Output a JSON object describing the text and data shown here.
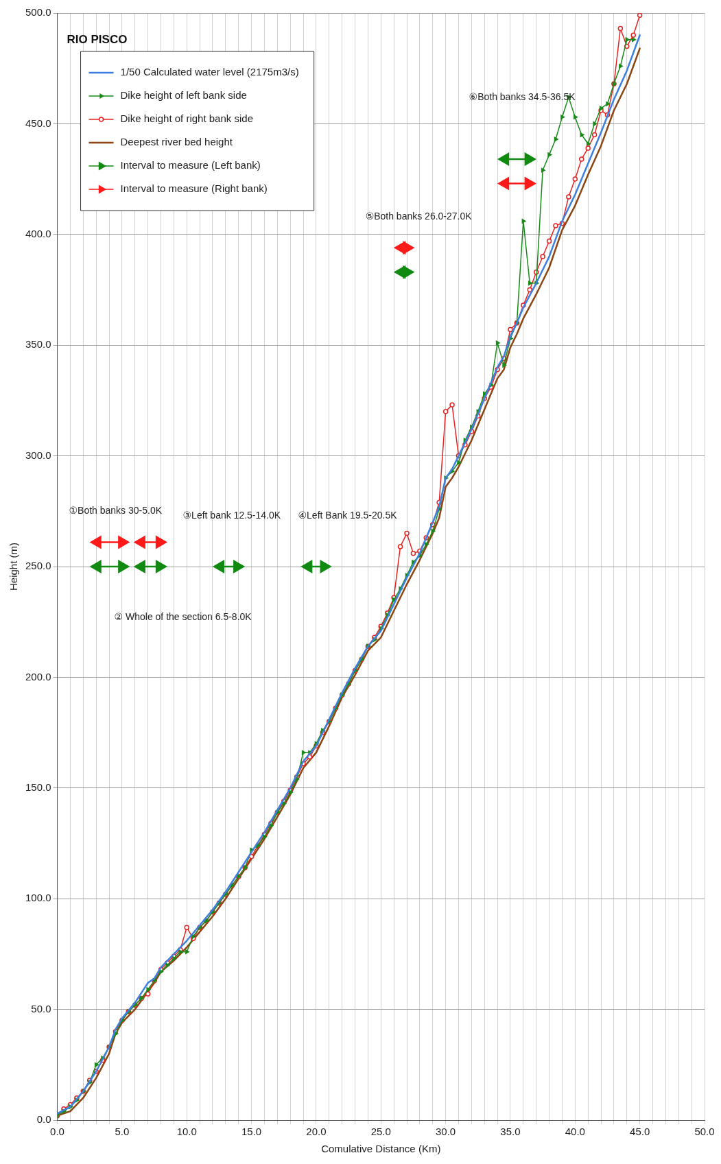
{
  "chart_data": {
    "type": "line",
    "xlabel": "Comulative Distance (Km)",
    "ylabel": "Height (m)",
    "legend_title": "RIO PISCO",
    "xlim": [
      0,
      50
    ],
    "ylim": [
      0,
      500
    ],
    "xticks": [
      {
        "value": 0,
        "label": "0.0"
      },
      {
        "value": 1,
        "label": null
      },
      {
        "value": 2,
        "label": null
      },
      {
        "value": 3,
        "label": null
      },
      {
        "value": 4,
        "label": null
      },
      {
        "value": 5,
        "label": "5.0"
      },
      {
        "value": 6,
        "label": null
      },
      {
        "value": 7,
        "label": null
      },
      {
        "value": 8,
        "label": null
      },
      {
        "value": 9,
        "label": null
      },
      {
        "value": 10,
        "label": "10.0"
      },
      {
        "value": 11,
        "label": null
      },
      {
        "value": 12,
        "label": null
      },
      {
        "value": 13,
        "label": null
      },
      {
        "value": 14,
        "label": null
      },
      {
        "value": 15,
        "label": "15.0"
      },
      {
        "value": 16,
        "label": null
      },
      {
        "value": 17,
        "label": null
      },
      {
        "value": 18,
        "label": null
      },
      {
        "value": 19,
        "label": null
      },
      {
        "value": 20,
        "label": "20.0"
      },
      {
        "value": 21,
        "label": null
      },
      {
        "value": 22,
        "label": null
      },
      {
        "value": 23,
        "label": null
      },
      {
        "value": 24,
        "label": null
      },
      {
        "value": 25,
        "label": "25.0"
      },
      {
        "value": 26,
        "label": null
      },
      {
        "value": 27,
        "label": null
      },
      {
        "value": 28,
        "label": null
      },
      {
        "value": 29,
        "label": null
      },
      {
        "value": 30,
        "label": "30.0"
      },
      {
        "value": 31,
        "label": null
      },
      {
        "value": 32,
        "label": null
      },
      {
        "value": 33,
        "label": null
      },
      {
        "value": 34,
        "label": null
      },
      {
        "value": 35,
        "label": "35.0"
      },
      {
        "value": 36,
        "label": null
      },
      {
        "value": 37,
        "label": null
      },
      {
        "value": 38,
        "label": null
      },
      {
        "value": 39,
        "label": null
      },
      {
        "value": 40,
        "label": "40.0"
      },
      {
        "value": 41,
        "label": null
      },
      {
        "value": 42,
        "label": null
      },
      {
        "value": 43,
        "label": null
      },
      {
        "value": 44,
        "label": null
      },
      {
        "value": 45,
        "label": "45.0"
      },
      {
        "value": 46,
        "label": null
      },
      {
        "value": 47,
        "label": null
      },
      {
        "value": 48,
        "label": null
      },
      {
        "value": 49,
        "label": null
      },
      {
        "value": 50,
        "label": "50.0"
      }
    ],
    "yticks": [
      {
        "value": 0,
        "label": "0.0"
      },
      {
        "value": 50,
        "label": "50.0"
      },
      {
        "value": 100,
        "label": "100.0"
      },
      {
        "value": 150,
        "label": "150.0"
      },
      {
        "value": 200,
        "label": "200.0"
      },
      {
        "value": 250,
        "label": "250.0"
      },
      {
        "value": 300,
        "label": "300.0"
      },
      {
        "value": 350,
        "label": "350.0"
      },
      {
        "value": 400,
        "label": "400.0"
      },
      {
        "value": 450,
        "label": "450.0"
      },
      {
        "value": 500,
        "label": "500.0"
      }
    ],
    "grid": true,
    "legend": "top left",
    "series": [
      {
        "name": "1/50 Calculated water level (2175m3/s)",
        "color": "#3d7fe0",
        "x": [
          0,
          1,
          2,
          3,
          4,
          4.5,
          5,
          6,
          7,
          7.5,
          8,
          9,
          10,
          11,
          12,
          13,
          14,
          15,
          16,
          17,
          18,
          19,
          20,
          21,
          22,
          23,
          24,
          25,
          26,
          27,
          28,
          29,
          29.5,
          30,
          30.5,
          31,
          32,
          33,
          34,
          34.5,
          35,
          35.5,
          36,
          37,
          38,
          39,
          40,
          41,
          42,
          43,
          44,
          45
        ],
        "values": [
          3,
          6,
          13,
          22,
          33,
          41,
          46,
          53,
          62,
          64,
          69,
          75,
          81,
          88,
          95,
          103,
          112,
          121,
          130,
          140,
          150,
          162,
          169,
          181,
          193,
          204,
          214,
          221,
          233,
          245,
          256,
          270,
          277,
          290,
          294,
          300,
          312,
          326,
          340,
          345,
          354,
          360,
          367,
          378,
          390,
          406,
          418,
          432,
          446,
          461,
          474,
          490
        ]
      },
      {
        "name": "Dike height of left bank side",
        "color": "#1a8a1a",
        "marker": "triangle",
        "x": [
          0,
          0.5,
          1,
          1.5,
          2,
          2.5,
          3,
          3.5,
          4,
          4.5,
          5,
          5.5,
          6,
          6.5,
          7,
          7.5,
          8,
          8.5,
          9,
          9.5,
          10,
          10.5,
          11,
          11.5,
          12,
          12.5,
          13,
          13.5,
          14,
          14.5,
          15,
          15.5,
          16,
          16.5,
          17,
          17.5,
          18,
          18.5,
          19,
          19.5,
          20,
          20.5,
          21,
          21.5,
          22,
          22.5,
          23,
          23.5,
          24,
          24.5,
          25,
          25.5,
          26,
          26.5,
          27,
          27.5,
          28,
          28.5,
          29,
          29.5,
          30,
          30.5,
          31,
          31.5,
          32,
          32.5,
          33,
          33.5,
          34,
          34.5,
          35,
          35.5,
          36,
          36.5,
          37,
          37.5,
          38,
          38.5,
          39,
          39.5,
          40,
          40.5,
          41,
          41.5,
          42,
          42.5,
          43,
          43.5,
          44,
          44.5
        ],
        "values": [
          2,
          4,
          6,
          9,
          13,
          17,
          25,
          28,
          33,
          39,
          45,
          49,
          52,
          55,
          59,
          63,
          67,
          70,
          73,
          76,
          76,
          83,
          87,
          90,
          94,
          98,
          102,
          106,
          110,
          114,
          122,
          124,
          128,
          133,
          139,
          143,
          148,
          154,
          166,
          166,
          170,
          176,
          180,
          186,
          192,
          197,
          203,
          208,
          214,
          217,
          222,
          228,
          235,
          240,
          246,
          252,
          255,
          260,
          266,
          276,
          290,
          293,
          297,
          307,
          313,
          320,
          328,
          332,
          351,
          341,
          353,
          360,
          406,
          378,
          378,
          429,
          436,
          443,
          453,
          462,
          453,
          445,
          441,
          450,
          457,
          459,
          468,
          476,
          488,
          488
        ]
      },
      {
        "name": "Dike height of right bank side",
        "color": "#e52222",
        "marker": "circle",
        "x": [
          0,
          0.5,
          1,
          1.5,
          2,
          2.5,
          3,
          3.5,
          4,
          4.5,
          5,
          5.5,
          6,
          6.5,
          7,
          7.5,
          8,
          8.5,
          9,
          9.5,
          10,
          10.5,
          11,
          11.5,
          12,
          12.5,
          13,
          13.5,
          14,
          14.5,
          15,
          15.5,
          16,
          16.5,
          17,
          17.5,
          18,
          18.5,
          19,
          19.5,
          20,
          20.5,
          21,
          21.5,
          22,
          22.5,
          23,
          23.5,
          24,
          24.5,
          25,
          25.5,
          26,
          26.5,
          27,
          27.5,
          28,
          28.5,
          29,
          29.5,
          30,
          30.5,
          31,
          31.5,
          32,
          32.5,
          33,
          33.5,
          34,
          34.5,
          35,
          35.5,
          36,
          36.5,
          37,
          37.5,
          38,
          38.5,
          39,
          39.5,
          40,
          40.5,
          41,
          41.5,
          42,
          42.5,
          43,
          43.5,
          44,
          44.5,
          45
        ],
        "values": [
          2,
          5,
          7,
          10,
          13,
          18,
          22,
          27,
          33,
          40,
          45,
          49,
          52,
          55,
          57,
          63,
          68,
          71,
          74,
          77,
          87,
          82,
          87,
          90,
          94,
          98,
          102,
          106,
          110,
          114,
          119,
          124,
          129,
          134,
          139,
          144,
          149,
          155,
          161,
          164,
          169,
          175,
          180,
          186,
          192,
          197,
          203,
          208,
          214,
          218,
          223,
          229,
          236,
          259,
          265,
          256,
          257,
          263,
          269,
          279,
          320,
          323,
          300,
          305,
          311,
          318,
          326,
          331,
          339,
          344,
          357,
          360,
          368,
          375,
          383,
          390,
          397,
          404,
          405,
          417,
          425,
          434,
          439,
          445,
          456,
          454,
          468,
          493,
          485,
          490,
          499
        ]
      },
      {
        "name": "Deepest river bed height",
        "color": "#8b4513",
        "x": [
          0,
          1,
          2,
          3,
          4,
          4.5,
          5,
          6,
          7,
          7.5,
          8,
          9,
          10,
          11,
          12,
          13,
          14,
          15,
          16,
          17,
          18,
          19,
          20,
          21,
          22,
          23,
          24,
          25,
          26,
          27,
          28,
          29,
          29.5,
          30,
          30.5,
          31,
          32,
          33,
          34,
          34.5,
          35,
          35.5,
          36,
          37,
          38,
          39,
          40,
          41,
          42,
          43,
          44,
          45
        ],
        "values": [
          2,
          4,
          10,
          19,
          30,
          39,
          44,
          50,
          58,
          62,
          67,
          72,
          78,
          85,
          92,
          100,
          109,
          118,
          127,
          137,
          147,
          159,
          166,
          178,
          191,
          201,
          212,
          218,
          230,
          242,
          253,
          265,
          272,
          286,
          290,
          295,
          307,
          321,
          335,
          339,
          349,
          355,
          362,
          373,
          385,
          402,
          413,
          427,
          440,
          456,
          468,
          484
        ]
      },
      {
        "name": "Interval to measure (Left bank)",
        "color": "#118a11",
        "marker": "triangle",
        "x": [
          3.1,
          5.0,
          5.7,
          6.5,
          7.9,
          10,
          12.6,
          13.9,
          16,
          19.4,
          20.6,
          23,
          26.6,
          27.0,
          30,
          34.6,
          36.4
        ],
        "values": [
          250,
          250,
          null,
          250,
          250,
          null,
          250,
          250,
          null,
          250,
          250,
          null,
          383,
          383,
          null,
          434,
          434
        ]
      },
      {
        "name": "Interval to measure (Right bank)",
        "color": "#ff1a1a",
        "marker": "triangle",
        "x": [
          3.1,
          5.0,
          5.7,
          6.5,
          7.9,
          16,
          26.6,
          27.0,
          30,
          34.6,
          36.4
        ],
        "values": [
          261,
          261,
          null,
          261,
          261,
          null,
          394,
          394,
          null,
          423,
          423
        ]
      }
    ],
    "annotations": [
      "①Both banks 30-5.0K",
      "② Whole of the section 6.5-8.0K",
      "③Left bank 12.5-14.0K",
      "④Left Bank 19.5-20.5K",
      "⑤Both banks 26.0-27.0K",
      "⑥Both banks 34.5-36.5K"
    ]
  }
}
